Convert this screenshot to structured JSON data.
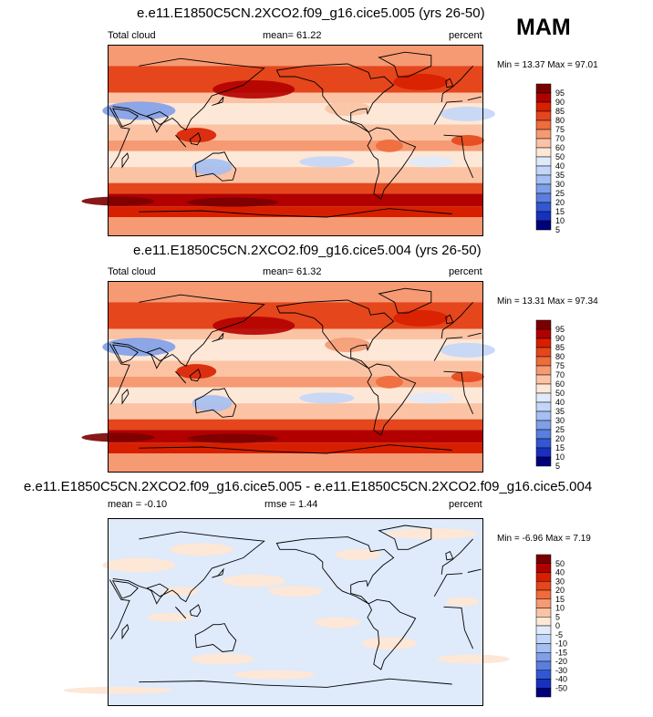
{
  "season": "MAM",
  "chart_data": [
    {
      "type": "heatmap",
      "title": "e.e11.E1850C5CN.2XCO2.f09_g16.cice5.005 (yrs 26-50)",
      "variable": "Total cloud",
      "units": "percent",
      "mean_label": "mean=",
      "mean": "61.22",
      "min_label": "Min =",
      "min": "13.37",
      "max_label": "Max =",
      "max": "97.01",
      "colorbar_levels": [
        "95",
        "90",
        "85",
        "80",
        "75",
        "70",
        "60",
        "50",
        "40",
        "35",
        "30",
        "25",
        "20",
        "15",
        "10",
        "5"
      ],
      "colorbar_colors": [
        "#7a0000",
        "#b20000",
        "#d71f00",
        "#e5461c",
        "#ef6c3c",
        "#f59a73",
        "#fbc3a4",
        "#fde7d7",
        "#dfeafb",
        "#c3d6f7",
        "#a4bff2",
        "#809fe9",
        "#5a7ee0",
        "#3357d3",
        "#1830bf",
        "#00007a"
      ]
    },
    {
      "type": "heatmap",
      "title": "e.e11.E1850C5CN.2XCO2.f09_g16.cice5.004 (yrs 26-50)",
      "variable": "Total cloud",
      "units": "percent",
      "mean_label": "mean=",
      "mean": "61.32",
      "min_label": "Min =",
      "min": "13.31",
      "max_label": "Max =",
      "max": "97.34",
      "colorbar_levels": [
        "95",
        "90",
        "85",
        "80",
        "75",
        "70",
        "60",
        "50",
        "40",
        "35",
        "30",
        "25",
        "20",
        "15",
        "10",
        "5"
      ],
      "colorbar_colors": [
        "#7a0000",
        "#b20000",
        "#d71f00",
        "#e5461c",
        "#ef6c3c",
        "#f59a73",
        "#fbc3a4",
        "#fde7d7",
        "#dfeafb",
        "#c3d6f7",
        "#a4bff2",
        "#809fe9",
        "#5a7ee0",
        "#3357d3",
        "#1830bf",
        "#00007a"
      ]
    },
    {
      "type": "heatmap",
      "title": "e.e11.E1850C5CN.2XCO2.f09_g16.cice5.005 - e.e11.E1850C5CN.2XCO2.f09_g16.cice5.004",
      "units": "percent",
      "mean_label": "mean =",
      "mean": "-0.10",
      "rmse_label": "rmse =",
      "rmse": "1.44",
      "min_label": "Min =",
      "min": "-6.96",
      "max_label": "Max =",
      "max": "7.19",
      "colorbar_levels": [
        "50",
        "40",
        "30",
        "20",
        "15",
        "10",
        "5",
        "0",
        "-5",
        "-10",
        "-15",
        "-20",
        "-30",
        "-40",
        "-50"
      ],
      "colorbar_colors": [
        "#7a0000",
        "#b20000",
        "#d71f00",
        "#e5461c",
        "#ef6c3c",
        "#f59a73",
        "#fbc3a4",
        "#fde7d7",
        "#dfeafb",
        "#c3d6f7",
        "#a4bff2",
        "#809fe9",
        "#5a7ee0",
        "#3357d3",
        "#1830bf",
        "#00007a"
      ]
    }
  ]
}
